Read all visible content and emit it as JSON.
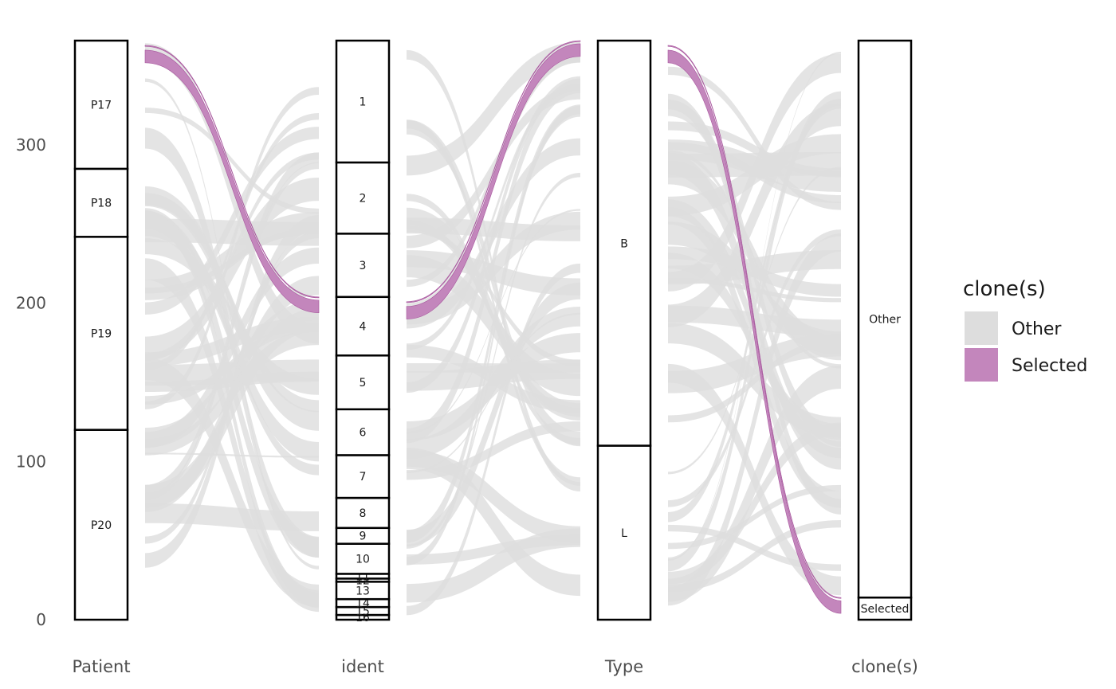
{
  "chart_data": {
    "type": "alluvial",
    "y_axis": {
      "ticks": [
        0,
        100,
        200,
        300
      ],
      "range": [
        0,
        366
      ]
    },
    "axes": [
      {
        "name": "Patient",
        "strata": [
          {
            "label": "P20",
            "value": 120
          },
          {
            "label": "P19",
            "value": 122
          },
          {
            "label": "P18",
            "value": 43
          },
          {
            "label": "P17",
            "value": 81
          }
        ]
      },
      {
        "name": "ident",
        "strata": [
          {
            "label": "16",
            "value": 3
          },
          {
            "label": "15",
            "value": 5
          },
          {
            "label": "14",
            "value": 5
          },
          {
            "label": "13",
            "value": 11
          },
          {
            "label": "12",
            "value": 2
          },
          {
            "label": "11",
            "value": 3
          },
          {
            "label": "10",
            "value": 19
          },
          {
            "label": "9",
            "value": 10
          },
          {
            "label": "8",
            "value": 19
          },
          {
            "label": "7",
            "value": 27
          },
          {
            "label": "6",
            "value": 29
          },
          {
            "label": "5",
            "value": 34
          },
          {
            "label": "4",
            "value": 37
          },
          {
            "label": "3",
            "value": 40
          },
          {
            "label": "2",
            "value": 45
          },
          {
            "label": "1",
            "value": 77
          }
        ]
      },
      {
        "name": "Type",
        "strata": [
          {
            "label": "L",
            "value": 110
          },
          {
            "label": "B",
            "value": 256
          }
        ]
      },
      {
        "name": "clone(s)",
        "strata": [
          {
            "label": "Selected",
            "value": 14
          },
          {
            "label": "Other",
            "value": 352
          }
        ]
      }
    ],
    "legend": {
      "title": "clone(s)",
      "position": "right",
      "items": [
        {
          "label": "Other",
          "color": "#dddddd"
        },
        {
          "label": "Selected",
          "color": "#c386bc"
        }
      ]
    },
    "colors": {
      "other": "#dddddd",
      "selected": "#c386bc",
      "selected_edge": "#a8579e"
    }
  }
}
